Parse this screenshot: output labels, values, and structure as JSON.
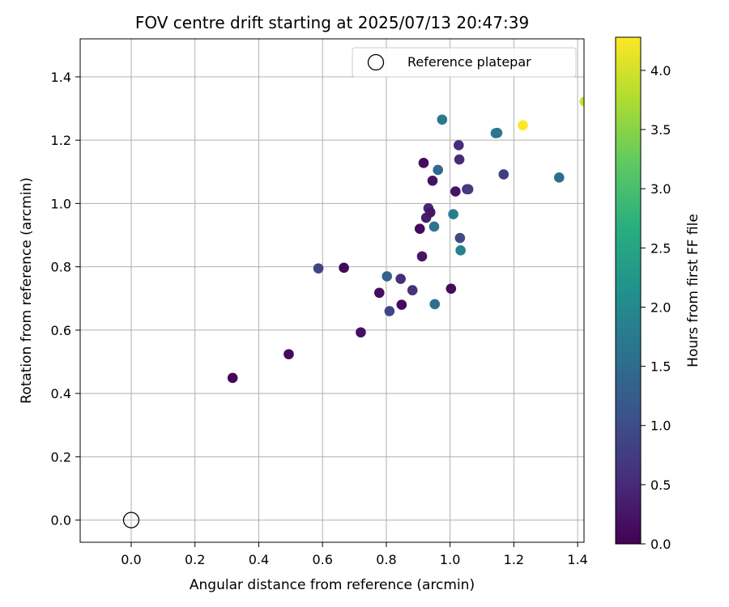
{
  "chart_data": {
    "type": "scatter",
    "title": "FOV centre drift starting at 2025/07/13 20:47:39",
    "xlabel": "Angular distance from reference (arcmin)",
    "ylabel": "Rotation from reference (arcmin)",
    "xlim": [
      -0.16,
      1.42
    ],
    "ylim": [
      -0.07,
      1.52
    ],
    "xticks": [
      "0.0",
      "0.2",
      "0.4",
      "0.6",
      "0.8",
      "1.0",
      "1.2",
      "1.4"
    ],
    "yticks": [
      "0.0",
      "0.2",
      "0.4",
      "0.6",
      "0.8",
      "1.0",
      "1.2",
      "1.4"
    ],
    "grid": true,
    "legend": {
      "position": "top-right",
      "entries": [
        "Reference platepar"
      ]
    },
    "reference_point": {
      "x": 0.0,
      "y": 0.0,
      "label": "Reference platepar"
    },
    "colorbar": {
      "label": "Hours from first FF file",
      "colormap": "viridis",
      "range": [
        0.0,
        4.28
      ],
      "ticks": [
        "0.0",
        "0.5",
        "1.0",
        "1.5",
        "2.0",
        "2.5",
        "3.0",
        "3.5",
        "4.0"
      ]
    },
    "points": [
      {
        "x": 0.318,
        "y": 0.449,
        "t": 0.05
      },
      {
        "x": 0.494,
        "y": 0.524,
        "t": 0.12
      },
      {
        "x": 0.72,
        "y": 0.593,
        "t": 0.18
      },
      {
        "x": 0.587,
        "y": 0.795,
        "t": 0.85
      },
      {
        "x": 0.667,
        "y": 0.797,
        "t": 0.08
      },
      {
        "x": 0.778,
        "y": 0.718,
        "t": 0.15
      },
      {
        "x": 0.802,
        "y": 0.77,
        "t": 1.35
      },
      {
        "x": 0.81,
        "y": 0.66,
        "t": 0.9
      },
      {
        "x": 0.845,
        "y": 0.762,
        "t": 0.55
      },
      {
        "x": 0.848,
        "y": 0.68,
        "t": 0.1
      },
      {
        "x": 0.882,
        "y": 0.726,
        "t": 0.62
      },
      {
        "x": 0.905,
        "y": 0.92,
        "t": 0.1
      },
      {
        "x": 0.912,
        "y": 0.833,
        "t": 0.25
      },
      {
        "x": 0.917,
        "y": 1.128,
        "t": 0.12
      },
      {
        "x": 0.925,
        "y": 0.955,
        "t": 0.35
      },
      {
        "x": 0.932,
        "y": 0.985,
        "t": 0.48
      },
      {
        "x": 0.938,
        "y": 0.972,
        "t": 0.25
      },
      {
        "x": 0.945,
        "y": 1.072,
        "t": 0.2
      },
      {
        "x": 0.95,
        "y": 0.927,
        "t": 1.65
      },
      {
        "x": 0.952,
        "y": 0.682,
        "t": 1.55
      },
      {
        "x": 0.962,
        "y": 1.106,
        "t": 1.45
      },
      {
        "x": 0.975,
        "y": 1.265,
        "t": 1.75
      },
      {
        "x": 1.003,
        "y": 0.731,
        "t": 0.12
      },
      {
        "x": 1.01,
        "y": 0.966,
        "t": 1.8
      },
      {
        "x": 1.017,
        "y": 1.038,
        "t": 0.22
      },
      {
        "x": 1.027,
        "y": 1.184,
        "t": 0.55
      },
      {
        "x": 1.029,
        "y": 1.139,
        "t": 0.5
      },
      {
        "x": 1.031,
        "y": 0.891,
        "t": 0.95
      },
      {
        "x": 1.033,
        "y": 0.852,
        "t": 1.85
      },
      {
        "x": 1.053,
        "y": 1.045,
        "t": 0.6
      },
      {
        "x": 1.057,
        "y": 1.045,
        "t": 0.75
      },
      {
        "x": 1.143,
        "y": 1.222,
        "t": 1.7
      },
      {
        "x": 1.148,
        "y": 1.223,
        "t": 1.68
      },
      {
        "x": 1.168,
        "y": 1.092,
        "t": 0.8
      },
      {
        "x": 1.228,
        "y": 1.247,
        "t": 4.28
      },
      {
        "x": 1.342,
        "y": 1.082,
        "t": 1.55
      },
      {
        "x": 1.422,
        "y": 1.322,
        "t": 3.95
      }
    ]
  }
}
